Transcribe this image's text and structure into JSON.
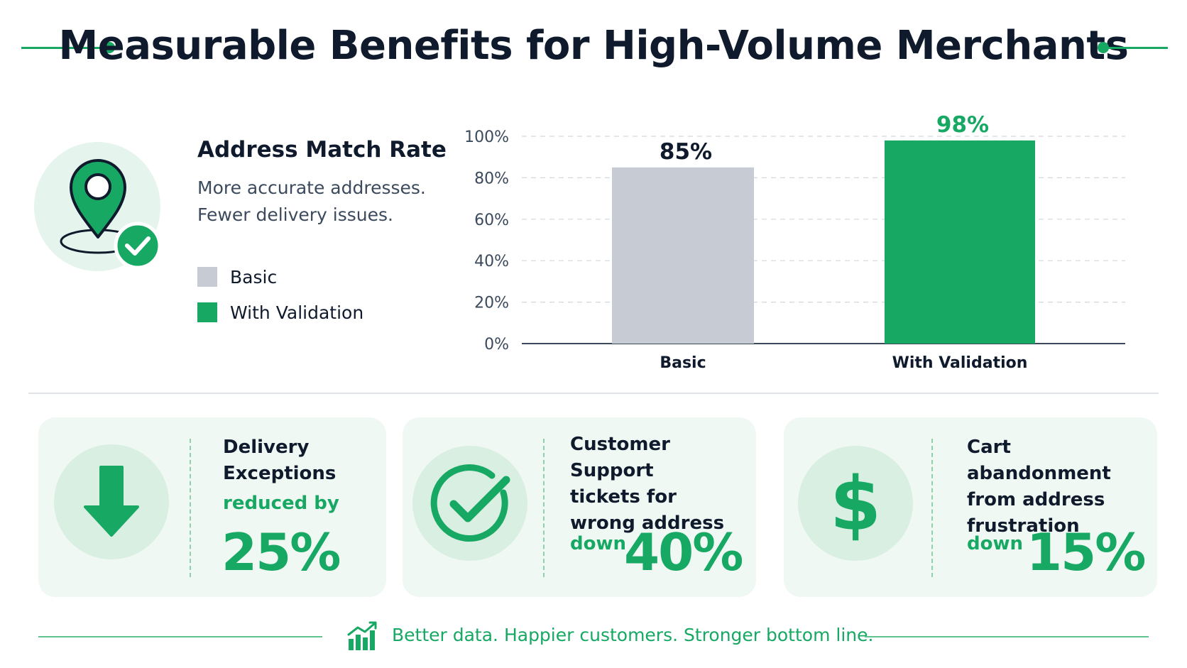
{
  "header": {
    "title": "Measurable Benefits for High-Volume Merchants"
  },
  "match_panel": {
    "title": "Address Match Rate",
    "subtitle_line1": "More accurate addresses.",
    "subtitle_line2": "Fewer delivery issues.",
    "icon": "location-pin-check-icon",
    "legend": [
      {
        "label": "Basic",
        "color": "#c7cbd4"
      },
      {
        "label": "With Validation",
        "color": "#17a864"
      }
    ]
  },
  "chart_data": {
    "type": "bar",
    "title": "Address Match Rate",
    "categories": [
      "Basic",
      "With Validation"
    ],
    "values": [
      85,
      98
    ],
    "value_labels": [
      "85%",
      "98%"
    ],
    "colors": [
      "#c7cbd4",
      "#17a864"
    ],
    "label_colors": [
      "#0f1b2d",
      "#17a864"
    ],
    "ylim": [
      0,
      100
    ],
    "yticks": [
      0,
      20,
      40,
      60,
      80,
      100
    ],
    "ytick_labels": [
      "0%",
      "20%",
      "40%",
      "60%",
      "80%",
      "100%"
    ],
    "grid": true,
    "legend_placement": "left"
  },
  "cards": [
    {
      "icon": "arrow-down-icon",
      "line1": "Delivery",
      "line2": "Exceptions",
      "qualifier": "reduced by",
      "value": "25%"
    },
    {
      "icon": "checkmark-circle-icon",
      "line1": "Customer Support",
      "line2": "tickets for",
      "line3": "wrong address",
      "qualifier": "down",
      "value": "40%"
    },
    {
      "icon": "dollar-sign-icon",
      "line1": "Cart abandonment",
      "line2": "from address",
      "line3": "frustration",
      "qualifier": "down",
      "value": "15%"
    }
  ],
  "footer": {
    "icon": "growth-chart-icon",
    "text": "Better data. Happier customers. Stronger bottom line."
  }
}
